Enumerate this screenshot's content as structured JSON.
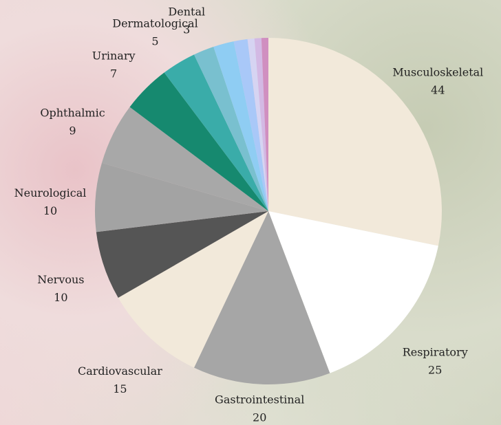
{
  "chart_data": {
    "type": "pie",
    "categories": [
      "Musculoskeletal",
      "Respiratory",
      "Gastrointestinal",
      "Cardiovascular",
      "Nervous",
      "Neurological",
      "Ophthalmic",
      "Urinary",
      "Dermatological",
      "Dental",
      null,
      null,
      null,
      null,
      null
    ],
    "values": [
      44,
      25,
      20,
      15,
      10,
      10,
      9,
      7,
      5,
      3,
      3,
      2,
      1,
      1,
      1
    ],
    "colors": [
      "#f2e9da",
      "#ffffff",
      "#a6a6a6",
      "#f2e9da",
      "#555555",
      "#a3a3a3",
      "#a8a8a8",
      "#16896f",
      "#3aaca9",
      "#79c0cf",
      "#8fcdf3",
      "#a9c8f8",
      "#d6d4f2",
      "#d3b9e4",
      "#d08fc0"
    ]
  }
}
